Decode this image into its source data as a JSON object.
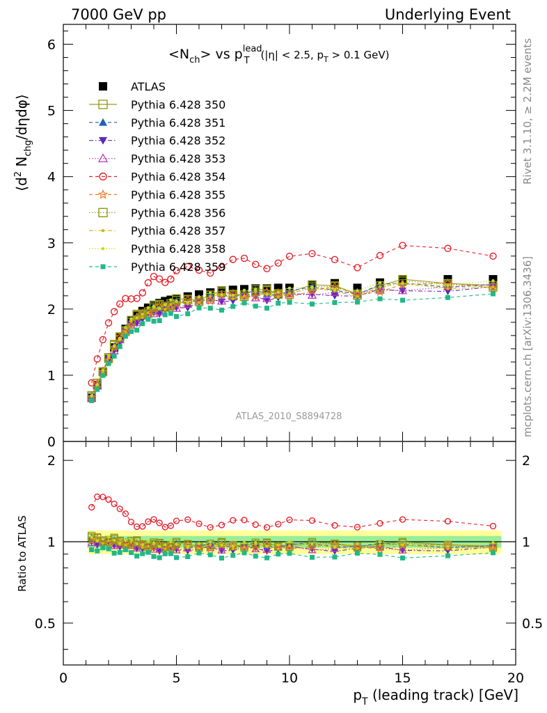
{
  "header": {
    "left": "7000 GeV pp",
    "right": "Underlying Event"
  },
  "title": {
    "pre": "<N",
    "sub1": "ch",
    "mid": "> vs p",
    "sup": "lead",
    "sub2": "T",
    "tail1": "(|η| < 2.5, p",
    "tail_sub": "T",
    "tail2": " > 0.1 GeV)"
  },
  "side_text": {
    "rivet": "Rivet 3.1.10, ≥ 2.2M events",
    "mcplots": "mcplots.cern.ch [arXiv:1306.3436]"
  },
  "analysis_id": "ATLAS_2010_S8894728",
  "ylabel_main": {
    "a": "⟨d",
    "b": "2",
    "c": " N",
    "d": "chg",
    "e": "/dηdφ⟩"
  },
  "ylabel_ratio": "Ratio to ATLAS",
  "xlabel": {
    "a": "p",
    "b": "T",
    "c": " (leading track) [GeV]"
  },
  "chart_data": {
    "type": "scatter",
    "xlim": [
      0,
      20
    ],
    "ylim_main": [
      0,
      6.3
    ],
    "ylim_ratio": [
      0.35,
      2.35
    ],
    "x_ticks": [
      "0",
      "5",
      "10",
      "15",
      "20"
    ],
    "y_ticks_main": [
      "0",
      "1",
      "2",
      "3",
      "4",
      "5",
      "6"
    ],
    "y_ticks_ratio": [
      "0.5",
      "1",
      "2"
    ],
    "x": [
      1.25,
      1.5,
      1.75,
      2.0,
      2.25,
      2.5,
      2.75,
      3.0,
      3.25,
      3.5,
      3.75,
      4.0,
      4.25,
      4.5,
      4.75,
      5.0,
      5.5,
      6.0,
      6.5,
      7.0,
      7.5,
      8.0,
      8.5,
      9.0,
      9.5,
      10.0,
      11.0,
      12.0,
      13.0,
      14.0,
      15.0,
      17.0,
      19.0
    ],
    "atlas": [
      0.66,
      0.85,
      1.05,
      1.25,
      1.42,
      1.57,
      1.7,
      1.82,
      1.9,
      1.97,
      2.02,
      2.06,
      2.09,
      2.12,
      2.14,
      2.16,
      2.19,
      2.22,
      2.25,
      2.28,
      2.29,
      2.3,
      2.31,
      2.31,
      2.32,
      2.32,
      2.37,
      2.39,
      2.32,
      2.4,
      2.45,
      2.45,
      2.45
    ],
    "band_inner": 0.05,
    "band_outer": 0.1,
    "series": [
      {
        "name": "ATLAS",
        "color": "#000000",
        "marker": "square",
        "dash": "none",
        "ratio_offset": 0
      },
      {
        "name": "Pythia 6.428 350",
        "color": "#9a9a20",
        "marker": "square-open",
        "dash": "solid",
        "ratio_offset": -0.02
      },
      {
        "name": "Pythia 6.428 351",
        "color": "#1f5fbf",
        "marker": "triangle-up",
        "dash": "dashed",
        "ratio_offset": -0.03
      },
      {
        "name": "Pythia 6.428 352",
        "color": "#5a2ab8",
        "marker": "triangle-down",
        "dash": "dashdot",
        "ratio_offset": -0.06
      },
      {
        "name": "Pythia 6.428 353",
        "color": "#c03ab8",
        "marker": "triangle-open",
        "dash": "dotted",
        "ratio_offset": -0.05
      },
      {
        "name": "Pythia 6.428 354",
        "color": "#e4202a",
        "marker": "circle-open",
        "dash": "dashed",
        "ratio_offset": 0.16
      },
      {
        "name": "Pythia 6.428 355",
        "color": "#f07820",
        "marker": "star-open",
        "dash": "dashed",
        "ratio_offset": -0.04
      },
      {
        "name": "Pythia 6.428 356",
        "color": "#8a9a10",
        "marker": "square-open",
        "dash": "dotted",
        "ratio_offset": -0.03
      },
      {
        "name": "Pythia 6.428 357",
        "color": "#d4b800",
        "marker": "dot",
        "dash": "dashdot",
        "ratio_offset": -0.04
      },
      {
        "name": "Pythia 6.428 358",
        "color": "#c8d820",
        "marker": "dot",
        "dash": "dotted",
        "ratio_offset": -0.02
      },
      {
        "name": "Pythia 6.428 359",
        "color": "#20b888",
        "marker": "square-small",
        "dash": "dashed",
        "ratio_offset": -0.11
      }
    ]
  }
}
